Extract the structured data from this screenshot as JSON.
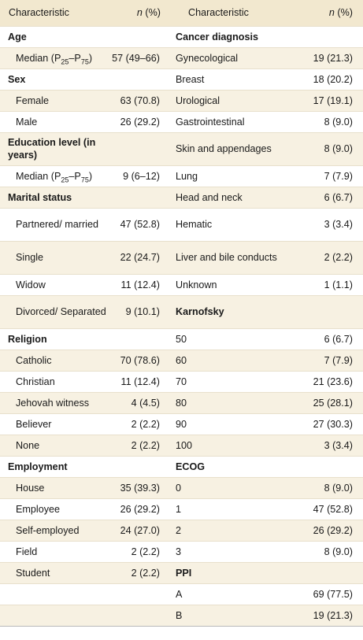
{
  "header": {
    "col1": "Characteristic",
    "col2_n": "n",
    "col2_pct": " (%)",
    "col3": "Characteristic",
    "col4_n": "n",
    "col4_pct": " (%)"
  },
  "rows": [
    {
      "a": "Age",
      "av": "",
      "c": "Cancer diagnosis",
      "cv": ""
    },
    {
      "a": "Median (P25–P75)",
      "av": "57 (49–66)",
      "c": "Gynecological",
      "cv": "19 (21.3)"
    },
    {
      "a": "Sex",
      "av": "",
      "c": "Breast",
      "cv": "18 (20.2)"
    },
    {
      "a": "Female",
      "av": "63 (70.8)",
      "c": "Urological",
      "cv": "17 (19.1)"
    },
    {
      "a": "Male",
      "av": "26 (29.2)",
      "c": "Gastrointestinal",
      "cv": "8 (9.0)"
    },
    {
      "a": "Education level (in years)",
      "av": "",
      "c": "Skin and appendages",
      "cv": "8 (9.0)"
    },
    {
      "a": "Median (P25–P75)",
      "av": "9 (6–12)",
      "c": "Lung",
      "cv": "7 (7.9)"
    },
    {
      "a": "Marital status",
      "av": "",
      "c": "Head and neck",
      "cv": "6 (6.7)"
    },
    {
      "a": "Partnered/ married",
      "av": "47 (52.8)",
      "c": "Hematic",
      "cv": "3 (3.4)"
    },
    {
      "a": "Single",
      "av": "22 (24.7)",
      "c": "Liver and bile conducts",
      "cv": "2 (2.2)"
    },
    {
      "a": "Widow",
      "av": "11 (12.4)",
      "c": "Unknown",
      "cv": "1 (1.1)"
    },
    {
      "a": "Divorced/ Separated",
      "av": "9 (10.1)",
      "c": "Karnofsky",
      "cv": ""
    },
    {
      "a": "Religion",
      "av": "",
      "c": "50",
      "cv": "6 (6.7)"
    },
    {
      "a": "Catholic",
      "av": "70 (78.6)",
      "c": "60",
      "cv": "7 (7.9)"
    },
    {
      "a": "Christian",
      "av": "11 (12.4)",
      "c": "70",
      "cv": "21 (23.6)"
    },
    {
      "a": "Jehovah witness",
      "av": "4 (4.5)",
      "c": "80",
      "cv": "25 (28.1)"
    },
    {
      "a": "Believer",
      "av": "2 (2.2)",
      "c": "90",
      "cv": "27 (30.3)"
    },
    {
      "a": "None",
      "av": "2 (2.2)",
      "c": "100",
      "cv": "3 (3.4)"
    },
    {
      "a": "Employment",
      "av": "",
      "c": "ECOG",
      "cv": ""
    },
    {
      "a": "House",
      "av": "35 (39.3)",
      "c": "0",
      "cv": "8 (9.0)"
    },
    {
      "a": "Employee",
      "av": "26 (29.2)",
      "c": "1",
      "cv": "47 (52.8)"
    },
    {
      "a": "Self-employed",
      "av": "24 (27.0)",
      "c": "2",
      "cv": "26 (29.2)"
    },
    {
      "a": "Field",
      "av": "2 (2.2)",
      "c": "3",
      "cv": "8 (9.0)"
    },
    {
      "a": "Student",
      "av": "2 (2.2)",
      "c": "PPI",
      "cv": ""
    },
    {
      "a": "",
      "av": "",
      "c": "A",
      "cv": "69 (77.5)"
    },
    {
      "a": "",
      "av": "",
      "c": "B",
      "cv": "19 (21.3)"
    }
  ]
}
